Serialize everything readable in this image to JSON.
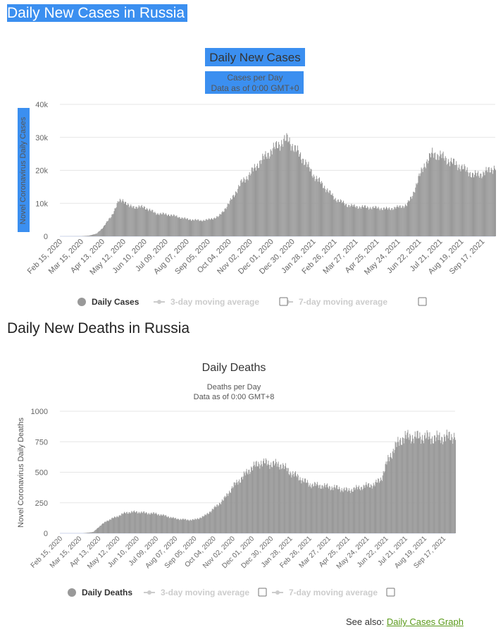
{
  "page": {
    "heading_cases": "Daily New Cases in Russia",
    "heading_deaths": "Daily New Deaths in Russia",
    "see_also_label": "See also:",
    "see_also_link": "Daily Cases Graph"
  },
  "colors": {
    "bar": "#999999",
    "heading_bg": "#3b8ff0",
    "grid": "#e6e6e6",
    "link": "#5a9a1a",
    "legend_off": "#cccccc"
  },
  "chart_data": [
    {
      "type": "bar",
      "title": "Daily New Cases",
      "subtitle_1": "Cases per Day",
      "subtitle_2": "Data as of 0:00 GMT+0",
      "ylabel": "Novel Coronavirus Daily Cases",
      "ylim": [
        0,
        40000
      ],
      "y_ticks": [
        "0",
        "10k",
        "20k",
        "30k",
        "40k"
      ],
      "x_start": "2020-02-15",
      "x_end": "2021-10-05",
      "x_tick_labels": [
        "Feb 15, 2020",
        "Mar 15, 2020",
        "Apr 13, 2020",
        "May 12, 2020",
        "Jun 10, 2020",
        "Jul 09, 2020",
        "Aug 07, 2020",
        "Sep 05, 2020",
        "Oct 04, 2020",
        "Nov 02, 2020",
        "Dec 01, 2020",
        "Dec 30, 2020",
        "Jan 28, 2021",
        "Feb 26, 2021",
        "Mar 27, 2021",
        "Apr 25, 2021",
        "May 24, 2021",
        "Jun 22, 2021",
        "Jul 21, 2021",
        "Aug 19, 2021",
        "Sep 17, 2021"
      ],
      "series": [
        {
          "name": "Daily Cases",
          "points": [
            [
              "2020-02-15",
              0
            ],
            [
              "2020-03-15",
              30
            ],
            [
              "2020-03-25",
              200
            ],
            [
              "2020-04-05",
              800
            ],
            [
              "2020-04-13",
              2500
            ],
            [
              "2020-04-25",
              6000
            ],
            [
              "2020-05-05",
              10500
            ],
            [
              "2020-05-12",
              11000
            ],
            [
              "2020-05-20",
              9000
            ],
            [
              "2020-06-10",
              8800
            ],
            [
              "2020-06-25",
              7000
            ],
            [
              "2020-07-15",
              6500
            ],
            [
              "2020-08-07",
              5200
            ],
            [
              "2020-08-25",
              4800
            ],
            [
              "2020-09-05",
              5000
            ],
            [
              "2020-09-20",
              6000
            ],
            [
              "2020-10-04",
              10000
            ],
            [
              "2020-10-20",
              16000
            ],
            [
              "2020-11-02",
              19000
            ],
            [
              "2020-11-15",
              22500
            ],
            [
              "2020-12-01",
              26000
            ],
            [
              "2020-12-15",
              28500
            ],
            [
              "2020-12-24",
              29500
            ],
            [
              "2020-12-30",
              27500
            ],
            [
              "2021-01-15",
              23000
            ],
            [
              "2021-01-28",
              18500
            ],
            [
              "2021-02-12",
              15000
            ],
            [
              "2021-02-26",
              11500
            ],
            [
              "2021-03-15",
              9500
            ],
            [
              "2021-03-27",
              9000
            ],
            [
              "2021-04-10",
              8800
            ],
            [
              "2021-04-25",
              8600
            ],
            [
              "2021-05-10",
              8300
            ],
            [
              "2021-05-24",
              8800
            ],
            [
              "2021-06-05",
              9500
            ],
            [
              "2021-06-12",
              12000
            ],
            [
              "2021-06-22",
              18000
            ],
            [
              "2021-06-30",
              22000
            ],
            [
              "2021-07-10",
              25000
            ],
            [
              "2021-07-21",
              24500
            ],
            [
              "2021-08-01",
              23000
            ],
            [
              "2021-08-19",
              21000
            ],
            [
              "2021-09-05",
              18500
            ],
            [
              "2021-09-17",
              19000
            ],
            [
              "2021-10-05",
              21000
            ]
          ]
        }
      ],
      "legend": [
        {
          "label": "Daily Cases",
          "active": true
        },
        {
          "label": "3-day moving average",
          "active": false
        },
        {
          "label": "7-day moving average",
          "active": false
        }
      ]
    },
    {
      "type": "bar",
      "title": "Daily Deaths",
      "subtitle_1": "Deaths per Day",
      "subtitle_2": "Data as of 0:00 GMT+8",
      "ylabel": "Novel Coronavirus Daily Deaths",
      "ylim": [
        0,
        1000
      ],
      "y_ticks": [
        "0",
        "250",
        "500",
        "750",
        "1000"
      ],
      "x_start": "2020-02-15",
      "x_end": "2021-10-05",
      "x_tick_labels": [
        "Feb 15, 2020",
        "Mar 15, 2020",
        "Apr 13, 2020",
        "May 12, 2020",
        "Jun 10, 2020",
        "Jul 09, 2020",
        "Aug 07, 2020",
        "Sep 05, 2020",
        "Oct 04, 2020",
        "Nov 02, 2020",
        "Dec 01, 2020",
        "Dec 30, 2020",
        "Jan 28, 2021",
        "Feb 26, 2021",
        "Mar 27, 2021",
        "Apr 25, 2021",
        "May 24, 2021",
        "Jun 22, 2021",
        "Jul 21, 2021",
        "Aug 19, 2021",
        "Sep 17, 2021"
      ],
      "series": [
        {
          "name": "Daily Deaths",
          "points": [
            [
              "2020-02-15",
              0
            ],
            [
              "2020-03-20",
              0
            ],
            [
              "2020-04-05",
              10
            ],
            [
              "2020-04-13",
              50
            ],
            [
              "2020-04-25",
              100
            ],
            [
              "2020-05-12",
              140
            ],
            [
              "2020-05-25",
              170
            ],
            [
              "2020-06-10",
              175
            ],
            [
              "2020-06-25",
              165
            ],
            [
              "2020-07-09",
              160
            ],
            [
              "2020-07-25",
              140
            ],
            [
              "2020-08-07",
              120
            ],
            [
              "2020-08-25",
              110
            ],
            [
              "2020-09-05",
              110
            ],
            [
              "2020-09-20",
              140
            ],
            [
              "2020-10-04",
              200
            ],
            [
              "2020-10-20",
              280
            ],
            [
              "2020-11-02",
              380
            ],
            [
              "2020-11-15",
              450
            ],
            [
              "2020-12-01",
              540
            ],
            [
              "2020-12-15",
              580
            ],
            [
              "2020-12-30",
              570
            ],
            [
              "2021-01-15",
              560
            ],
            [
              "2021-01-28",
              500
            ],
            [
              "2021-02-12",
              450
            ],
            [
              "2021-02-26",
              400
            ],
            [
              "2021-03-15",
              390
            ],
            [
              "2021-03-27",
              380
            ],
            [
              "2021-04-10",
              370
            ],
            [
              "2021-04-25",
              350
            ],
            [
              "2021-05-10",
              370
            ],
            [
              "2021-05-24",
              390
            ],
            [
              "2021-06-05",
              400
            ],
            [
              "2021-06-15",
              450
            ],
            [
              "2021-06-25",
              600
            ],
            [
              "2021-07-05",
              700
            ],
            [
              "2021-07-15",
              770
            ],
            [
              "2021-07-21",
              790
            ],
            [
              "2021-08-01",
              790
            ],
            [
              "2021-08-19",
              790
            ],
            [
              "2021-09-05",
              780
            ],
            [
              "2021-09-17",
              785
            ],
            [
              "2021-10-05",
              800
            ]
          ]
        }
      ],
      "legend": [
        {
          "label": "Daily Deaths",
          "active": true
        },
        {
          "label": "3-day moving average",
          "active": false
        },
        {
          "label": "7-day moving average",
          "active": false
        }
      ]
    }
  ]
}
